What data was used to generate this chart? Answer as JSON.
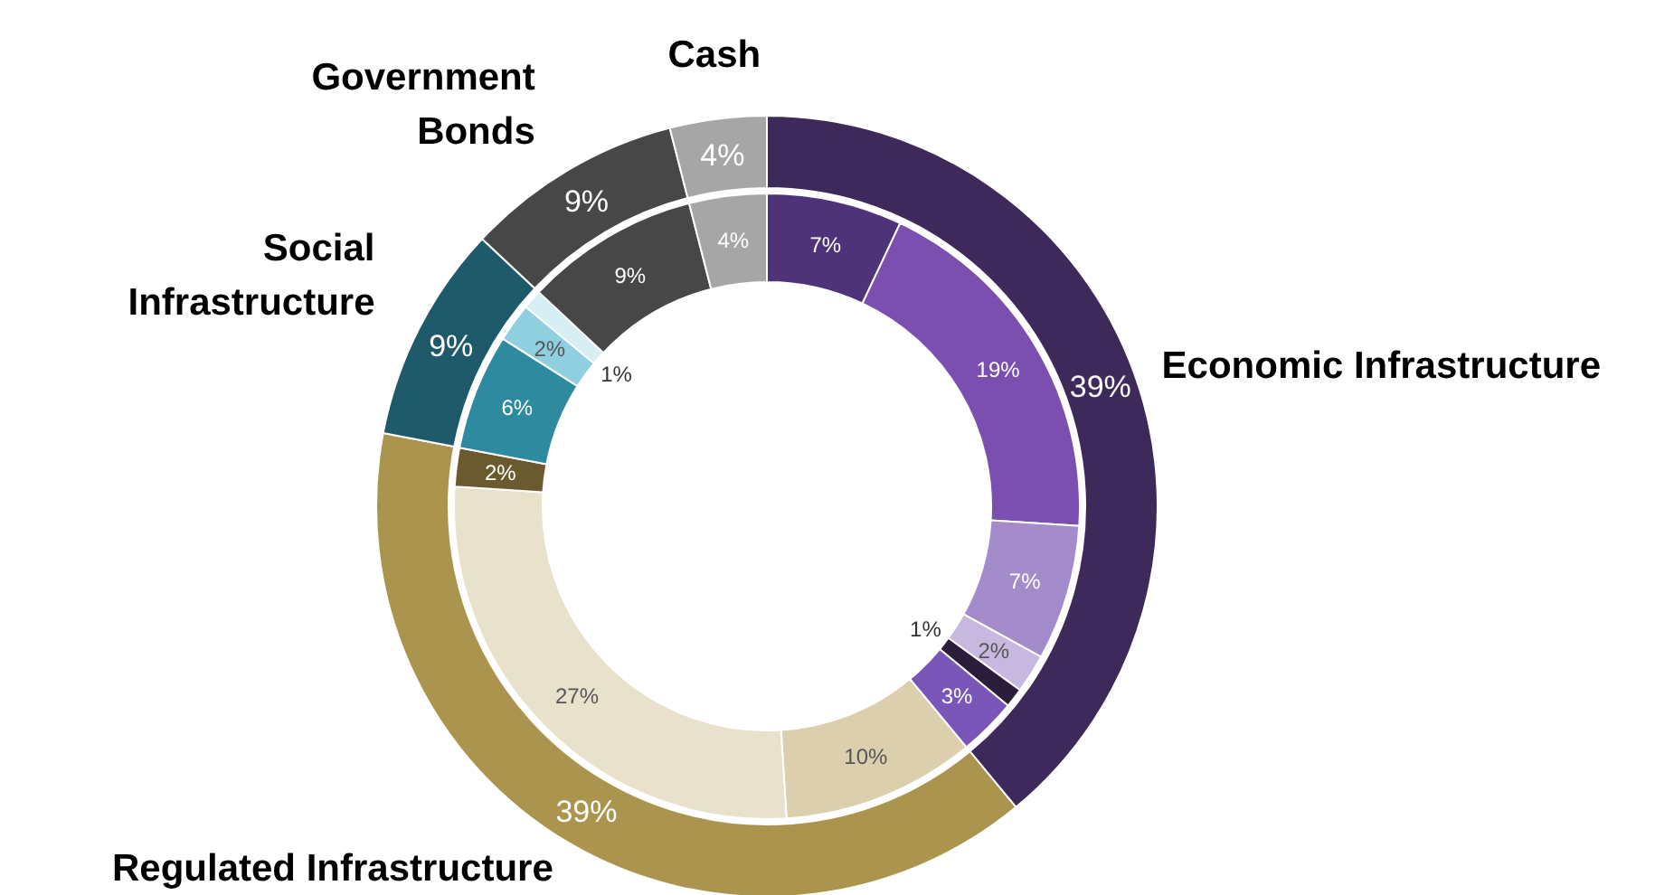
{
  "chart_data": [
    {
      "type": "donut",
      "categories": [
        "Economic Infrastructure",
        "Regulated Infrastructure",
        "Social Infrastructure",
        "Government Bonds",
        "Cash"
      ],
      "series": [
        {
          "values": [
            39,
            39,
            9,
            9,
            4
          ],
          "colors": [
            "#3d2a5a",
            "#ab944e",
            "#1f5a6a",
            "#474747",
            "#a6a6a6"
          ],
          "value_labels": [
            "39%",
            "39%",
            "9%",
            "9%",
            "4%"
          ]
        }
      ]
    },
    {
      "type": "donut",
      "categories": [
        null,
        null,
        null,
        null,
        null,
        null,
        null,
        null,
        null,
        null,
        null,
        null,
        null,
        null
      ],
      "series": [
        {
          "values": [
            7,
            19,
            7,
            2,
            1,
            3,
            10,
            27,
            2,
            6,
            2,
            1,
            9,
            4
          ],
          "colors": [
            "#4e3378",
            "#7b4fb0",
            "#a48ccb",
            "#c7b8e0",
            "#2a1d3a",
            "#7a56b8",
            "#dccfad",
            "#e8e1cc",
            "#6b5a30",
            "#2e8a9e",
            "#8fcfe0",
            "#d7eef5",
            "#474747",
            "#a6a6a6"
          ],
          "value_labels": [
            "7%",
            "19%",
            "7%",
            "2%",
            "1%",
            "3%",
            "10%",
            "27%",
            "2%",
            "6%",
            "2%",
            "1%",
            "9%",
            "4%"
          ]
        }
      ]
    }
  ]
}
